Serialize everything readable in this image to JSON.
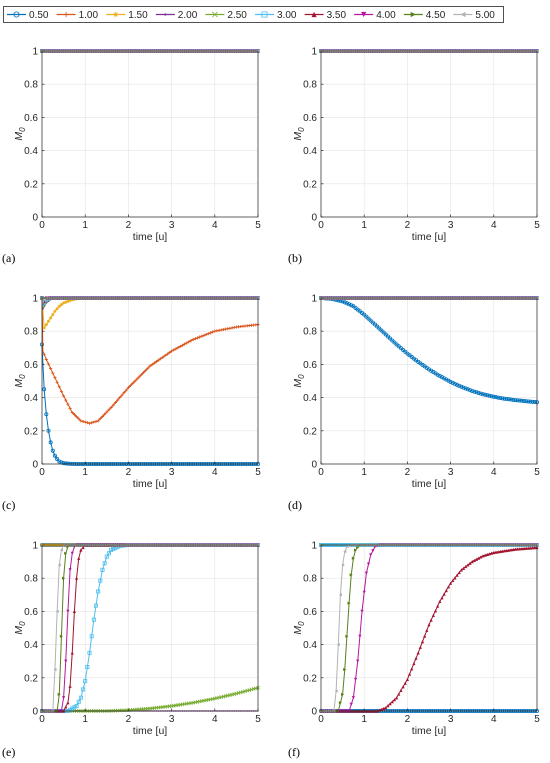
{
  "legend": {
    "entries": [
      {
        "label": "0.50",
        "color": "#0072BD",
        "marker": "circle"
      },
      {
        "label": "1.00",
        "color": "#D95319",
        "marker": "plus"
      },
      {
        "label": "1.50",
        "color": "#EDB120",
        "marker": "star"
      },
      {
        "label": "2.00",
        "color": "#7E2F8E",
        "marker": "point"
      },
      {
        "label": "2.50",
        "color": "#77AC30",
        "marker": "x"
      },
      {
        "label": "3.00",
        "color": "#4DBEEE",
        "marker": "square"
      },
      {
        "label": "3.50",
        "color": "#A2142F",
        "marker": "triangle-up"
      },
      {
        "label": "4.00",
        "color": "#B5179E",
        "marker": "triangle-down"
      },
      {
        "label": "4.50",
        "color": "#5B7F1A",
        "marker": "triangle-right"
      },
      {
        "label": "5.00",
        "color": "#B3B3B3",
        "marker": "triangle-left"
      }
    ]
  },
  "chart_data": [
    {
      "panel": "(a)",
      "type": "line",
      "ylabel": "M_0",
      "xlabel": "time [u]",
      "xlim": [
        0,
        5
      ],
      "ylim": [
        0,
        1
      ],
      "xticks": [
        0,
        1,
        2,
        3,
        4,
        5
      ],
      "yticks": [
        0,
        0.2,
        0.4,
        0.6,
        0.8,
        1
      ],
      "series": [
        {
          "name": "0.50",
          "x": [
            0,
            5
          ],
          "y": [
            1,
            1
          ]
        },
        {
          "name": "1.00",
          "x": [
            0,
            5
          ],
          "y": [
            1,
            1
          ]
        },
        {
          "name": "1.50",
          "x": [
            0,
            5
          ],
          "y": [
            1,
            1
          ]
        },
        {
          "name": "2.00",
          "x": [
            0,
            5
          ],
          "y": [
            1,
            1
          ]
        },
        {
          "name": "2.50",
          "x": [
            0,
            5
          ],
          "y": [
            1,
            1
          ]
        },
        {
          "name": "3.00",
          "x": [
            0,
            5
          ],
          "y": [
            1,
            1
          ]
        },
        {
          "name": "3.50",
          "x": [
            0,
            5
          ],
          "y": [
            1,
            1
          ]
        },
        {
          "name": "4.00",
          "x": [
            0,
            5
          ],
          "y": [
            1,
            1
          ]
        },
        {
          "name": "4.50",
          "x": [
            0,
            5
          ],
          "y": [
            1,
            1
          ]
        },
        {
          "name": "5.00",
          "x": [
            0,
            5
          ],
          "y": [
            1,
            1
          ]
        }
      ]
    },
    {
      "panel": "(b)",
      "type": "line",
      "ylabel": "M_0",
      "xlabel": "time [u]",
      "xlim": [
        0,
        5
      ],
      "ylim": [
        0,
        1
      ],
      "xticks": [
        0,
        1,
        2,
        3,
        4,
        5
      ],
      "yticks": [
        0,
        0.2,
        0.4,
        0.6,
        0.8,
        1
      ],
      "series": [
        {
          "name": "0.50",
          "x": [
            0,
            5
          ],
          "y": [
            1,
            1
          ]
        },
        {
          "name": "1.00",
          "x": [
            0,
            5
          ],
          "y": [
            1,
            1
          ]
        },
        {
          "name": "1.50",
          "x": [
            0,
            5
          ],
          "y": [
            1,
            1
          ]
        },
        {
          "name": "2.00",
          "x": [
            0,
            5
          ],
          "y": [
            1,
            1
          ]
        },
        {
          "name": "2.50",
          "x": [
            0,
            5
          ],
          "y": [
            1,
            1
          ]
        },
        {
          "name": "3.00",
          "x": [
            0,
            5
          ],
          "y": [
            1,
            1
          ]
        },
        {
          "name": "3.50",
          "x": [
            0,
            5
          ],
          "y": [
            1,
            1
          ]
        },
        {
          "name": "4.00",
          "x": [
            0,
            5
          ],
          "y": [
            1,
            1
          ]
        },
        {
          "name": "4.50",
          "x": [
            0,
            5
          ],
          "y": [
            1,
            1
          ]
        },
        {
          "name": "5.00",
          "x": [
            0,
            5
          ],
          "y": [
            1,
            1
          ]
        }
      ]
    },
    {
      "panel": "(c)",
      "type": "line",
      "ylabel": "M_0",
      "xlabel": "time [u]",
      "xlim": [
        0,
        5
      ],
      "ylim": [
        0,
        1
      ],
      "xticks": [
        0,
        1,
        2,
        3,
        4,
        5
      ],
      "yticks": [
        0,
        0.2,
        0.4,
        0.6,
        0.8,
        1
      ],
      "series": [
        {
          "name": "0.50",
          "x": [
            0,
            0.05,
            0.1,
            0.15,
            0.2,
            0.25,
            0.3,
            0.35,
            0.4,
            0.5,
            0.6,
            0.8,
            1,
            2,
            3,
            4,
            5
          ],
          "y": [
            0.72,
            0.45,
            0.3,
            0.2,
            0.13,
            0.08,
            0.05,
            0.03,
            0.015,
            0.005,
            0.002,
            0,
            0,
            0,
            0,
            0,
            0
          ]
        },
        {
          "name": "1.00",
          "x": [
            0,
            0.02,
            0.1,
            0.3,
            0.5,
            0.7,
            0.9,
            1.1,
            1.3,
            1.6,
            2,
            2.5,
            3,
            3.5,
            4,
            4.5,
            5
          ],
          "y": [
            1,
            0.68,
            0.63,
            0.52,
            0.41,
            0.31,
            0.26,
            0.245,
            0.26,
            0.34,
            0.46,
            0.59,
            0.68,
            0.75,
            0.8,
            0.825,
            0.84
          ]
        },
        {
          "name": "1.50",
          "x": [
            0,
            0.05,
            0.1,
            0.2,
            0.3,
            0.4,
            0.5,
            0.6,
            0.7,
            0.8,
            1,
            5
          ],
          "y": [
            1,
            0.82,
            0.84,
            0.88,
            0.92,
            0.95,
            0.97,
            0.98,
            0.99,
            0.995,
            1,
            1
          ]
        },
        {
          "name": "2.00",
          "x": [
            0,
            0.02,
            0.05,
            0.1,
            0.2,
            0.3,
            5
          ],
          "y": [
            1,
            0.93,
            0.95,
            0.97,
            0.99,
            1,
            1
          ]
        },
        {
          "name": "2.50",
          "x": [
            0,
            0.02,
            0.05,
            0.1,
            0.2,
            5
          ],
          "y": [
            1,
            0.94,
            0.96,
            0.98,
            1,
            1
          ]
        },
        {
          "name": "3.00",
          "x": [
            0,
            0.02,
            0.05,
            0.1,
            0.2,
            5
          ],
          "y": [
            1,
            0.95,
            0.97,
            0.99,
            1,
            1
          ]
        },
        {
          "name": "3.50",
          "x": [
            0,
            0.02,
            0.05,
            0.1,
            5
          ],
          "y": [
            1,
            0.96,
            0.98,
            1,
            1
          ]
        },
        {
          "name": "4.00",
          "x": [
            0,
            0.02,
            0.05,
            0.1,
            5
          ],
          "y": [
            1,
            0.96,
            0.98,
            1,
            1
          ]
        },
        {
          "name": "4.50",
          "x": [
            0,
            0.02,
            0.05,
            0.1,
            5
          ],
          "y": [
            1,
            0.97,
            0.99,
            1,
            1
          ]
        },
        {
          "name": "5.00",
          "x": [
            0,
            0.02,
            0.05,
            0.1,
            5
          ],
          "y": [
            1,
            0.97,
            0.99,
            1,
            1
          ]
        }
      ]
    },
    {
      "panel": "(d)",
      "type": "line",
      "ylabel": "M_0",
      "xlabel": "time [u]",
      "xlim": [
        0,
        5
      ],
      "ylim": [
        0,
        1
      ],
      "xticks": [
        0,
        1,
        2,
        3,
        4,
        5
      ],
      "yticks": [
        0,
        0.2,
        0.4,
        0.6,
        0.8,
        1
      ],
      "series": [
        {
          "name": "0.50",
          "x": [
            0,
            0.25,
            0.5,
            0.75,
            1,
            1.25,
            1.5,
            1.75,
            2,
            2.25,
            2.5,
            2.75,
            3,
            3.25,
            3.5,
            3.75,
            4,
            4.25,
            4.5,
            4.75,
            5
          ],
          "y": [
            1,
            0.995,
            0.98,
            0.95,
            0.9,
            0.84,
            0.78,
            0.72,
            0.665,
            0.615,
            0.57,
            0.53,
            0.495,
            0.465,
            0.44,
            0.42,
            0.405,
            0.393,
            0.385,
            0.378,
            0.372
          ]
        },
        {
          "name": "1.00",
          "x": [
            0,
            5
          ],
          "y": [
            1,
            1
          ]
        },
        {
          "name": "1.50",
          "x": [
            0,
            5
          ],
          "y": [
            1,
            1
          ]
        },
        {
          "name": "2.00",
          "x": [
            0,
            5
          ],
          "y": [
            1,
            1
          ]
        },
        {
          "name": "2.50",
          "x": [
            0,
            5
          ],
          "y": [
            1,
            1
          ]
        },
        {
          "name": "3.00",
          "x": [
            0,
            5
          ],
          "y": [
            1,
            1
          ]
        },
        {
          "name": "3.50",
          "x": [
            0,
            5
          ],
          "y": [
            1,
            1
          ]
        },
        {
          "name": "4.00",
          "x": [
            0,
            5
          ],
          "y": [
            1,
            1
          ]
        },
        {
          "name": "4.50",
          "x": [
            0,
            5
          ],
          "y": [
            1,
            1
          ]
        },
        {
          "name": "5.00",
          "x": [
            0,
            5
          ],
          "y": [
            1,
            1
          ]
        }
      ]
    },
    {
      "panel": "(e)",
      "type": "line",
      "ylabel": "M_0",
      "xlabel": "time [u]",
      "xlim": [
        0,
        5
      ],
      "ylim": [
        0,
        1
      ],
      "xticks": [
        0,
        1,
        2,
        3,
        4,
        5
      ],
      "yticks": [
        0,
        0.2,
        0.4,
        0.6,
        0.8,
        1
      ],
      "series": [
        {
          "name": "0.50",
          "x": [
            0,
            5
          ],
          "y": [
            1,
            1
          ]
        },
        {
          "name": "1.00",
          "x": [
            0,
            5
          ],
          "y": [
            1,
            1
          ]
        },
        {
          "name": "1.50",
          "x": [
            0,
            5
          ],
          "y": [
            1,
            1
          ]
        },
        {
          "name": "2.00",
          "x": [
            0,
            5
          ],
          "y": [
            0,
            0
          ]
        },
        {
          "name": "2.50",
          "x": [
            0,
            1.5,
            2,
            2.5,
            3,
            3.5,
            4,
            4.5,
            5
          ],
          "y": [
            0,
            0,
            0.005,
            0.015,
            0.03,
            0.05,
            0.075,
            0.105,
            0.14
          ]
        },
        {
          "name": "3.00",
          "x": [
            0,
            0.6,
            0.8,
            0.9,
            1,
            1.1,
            1.2,
            1.3,
            1.4,
            1.5,
            1.6,
            1.8,
            2,
            5
          ],
          "y": [
            0,
            0,
            0.03,
            0.08,
            0.18,
            0.35,
            0.55,
            0.72,
            0.85,
            0.93,
            0.97,
            0.995,
            1,
            1
          ]
        },
        {
          "name": "3.50",
          "x": [
            0,
            0.5,
            0.6,
            0.65,
            0.7,
            0.75,
            0.8,
            0.85,
            0.9,
            1,
            5
          ],
          "y": [
            0,
            0,
            0.05,
            0.15,
            0.35,
            0.6,
            0.8,
            0.92,
            0.97,
            1,
            1
          ]
        },
        {
          "name": "4.00",
          "x": [
            0,
            0.45,
            0.5,
            0.55,
            0.6,
            0.65,
            0.7,
            0.75,
            0.8,
            5
          ],
          "y": [
            0,
            0,
            0.08,
            0.3,
            0.6,
            0.85,
            0.95,
            0.99,
            1,
            1
          ]
        },
        {
          "name": "4.50",
          "x": [
            0,
            0.35,
            0.4,
            0.45,
            0.5,
            0.55,
            0.6,
            0.65,
            5
          ],
          "y": [
            0,
            0,
            0.1,
            0.45,
            0.8,
            0.95,
            0.99,
            1,
            1
          ]
        },
        {
          "name": "5.00",
          "x": [
            0,
            0.25,
            0.3,
            0.35,
            0.4,
            0.45,
            0.5,
            5
          ],
          "y": [
            0,
            0,
            0.25,
            0.6,
            0.88,
            0.97,
            1,
            1
          ]
        }
      ]
    },
    {
      "panel": "(f)",
      "type": "line",
      "ylabel": "M_0",
      "xlabel": "time [u]",
      "xlim": [
        0,
        5
      ],
      "ylim": [
        0,
        1
      ],
      "xticks": [
        0,
        1,
        2,
        3,
        4,
        5
      ],
      "yticks": [
        0,
        0.2,
        0.4,
        0.6,
        0.8,
        1
      ],
      "series": [
        {
          "name": "0.50",
          "x": [
            0,
            5
          ],
          "y": [
            0,
            0
          ]
        },
        {
          "name": "1.00",
          "x": [
            0,
            5
          ],
          "y": [
            1,
            1
          ]
        },
        {
          "name": "1.50",
          "x": [
            0,
            5
          ],
          "y": [
            1,
            1
          ]
        },
        {
          "name": "2.00",
          "x": [
            0,
            5
          ],
          "y": [
            1,
            1
          ]
        },
        {
          "name": "2.50",
          "x": [
            0,
            5
          ],
          "y": [
            1,
            1
          ]
        },
        {
          "name": "3.00",
          "x": [
            0,
            5
          ],
          "y": [
            1,
            1
          ]
        },
        {
          "name": "3.50",
          "x": [
            0,
            1.3,
            1.5,
            1.75,
            2,
            2.25,
            2.5,
            2.75,
            3,
            3.25,
            3.5,
            3.75,
            4,
            4.5,
            5
          ],
          "y": [
            0,
            0,
            0.02,
            0.08,
            0.19,
            0.35,
            0.52,
            0.66,
            0.77,
            0.85,
            0.9,
            0.935,
            0.955,
            0.975,
            0.985
          ]
        },
        {
          "name": "4.00",
          "x": [
            0,
            0.65,
            0.75,
            0.85,
            0.95,
            1.05,
            1.15,
            1.25,
            1.35,
            5
          ],
          "y": [
            0,
            0,
            0.08,
            0.3,
            0.6,
            0.83,
            0.94,
            0.99,
            1,
            1
          ]
        },
        {
          "name": "4.50",
          "x": [
            0,
            0.4,
            0.5,
            0.55,
            0.6,
            0.65,
            0.7,
            0.75,
            0.8,
            0.9,
            5
          ],
          "y": [
            0,
            0,
            0.1,
            0.25,
            0.45,
            0.65,
            0.82,
            0.92,
            0.97,
            1,
            1
          ]
        },
        {
          "name": "5.00",
          "x": [
            0,
            0.3,
            0.35,
            0.4,
            0.45,
            0.5,
            0.55,
            0.6,
            0.7,
            5
          ],
          "y": [
            0,
            0,
            0.12,
            0.4,
            0.7,
            0.88,
            0.96,
            0.99,
            1,
            1
          ]
        }
      ]
    }
  ]
}
